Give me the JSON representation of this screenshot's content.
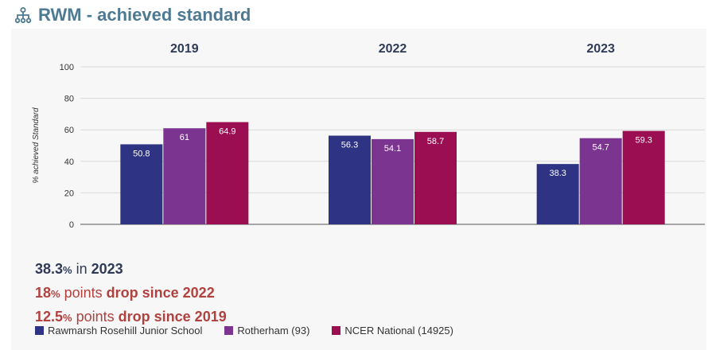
{
  "header": {
    "title": "RWM - achieved standard",
    "icon": "hierarchy-icon"
  },
  "chart_data": {
    "type": "bar",
    "ylabel": "% achieved Standard",
    "ylim": [
      0,
      100
    ],
    "yticks": [
      0,
      20,
      40,
      60,
      80,
      100
    ],
    "grid": true,
    "categories": [
      "2019",
      "2022",
      "2023"
    ],
    "series": [
      {
        "name": "Rawmarsh Rosehill Junior School",
        "color": "#2e3383",
        "values": [
          50.8,
          56.3,
          38.3
        ],
        "labels": [
          "50.8",
          "56.3",
          "38.3"
        ]
      },
      {
        "name": "Rotherham (93)",
        "color": "#7b3591",
        "values": [
          61,
          54.1,
          54.7
        ],
        "labels": [
          "61",
          "54.1",
          "54.7"
        ]
      },
      {
        "name": "NCER National (14925)",
        "color": "#9b0f52",
        "values": [
          64.9,
          58.7,
          59.3
        ],
        "labels": [
          "64.9",
          "58.7",
          "59.3"
        ]
      }
    ]
  },
  "summary": {
    "line1": {
      "value": "38.3",
      "unit": "%",
      "mid": " in ",
      "year": "2023"
    },
    "line2": {
      "value": "18",
      "unit": "%",
      "mid": " points ",
      "text": "drop since 2022"
    },
    "line3": {
      "value": "12.5",
      "unit": "%",
      "mid": " points ",
      "text": "drop since 2019"
    }
  },
  "legend": {
    "items": [
      {
        "label": "Rawmarsh Rosehill Junior School",
        "color": "#2e3383"
      },
      {
        "label": "Rotherham (93)",
        "color": "#7b3591"
      },
      {
        "label": "NCER National (14925)",
        "color": "#9b0f52"
      }
    ]
  }
}
